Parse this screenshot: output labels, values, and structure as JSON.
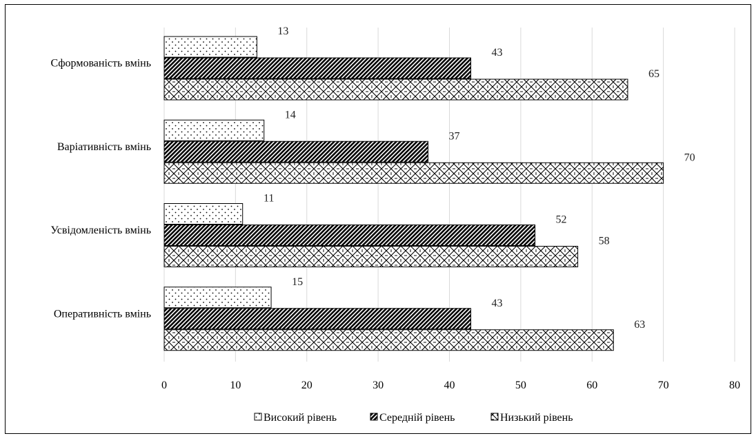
{
  "chart_data": {
    "type": "bar",
    "orientation": "horizontal",
    "categories": [
      "Сформованість вмінь",
      "Варіативність вмінь",
      "Усвідомленість вмінь",
      "Оперативність вмінь"
    ],
    "series": [
      {
        "name": "Високий рівень",
        "values": [
          13,
          14,
          11,
          15
        ],
        "pattern": "dots"
      },
      {
        "name": "Середній рівень",
        "values": [
          43,
          37,
          52,
          43
        ],
        "pattern": "diagonal-dense"
      },
      {
        "name": "Низький рівень",
        "values": [
          65,
          70,
          58,
          63
        ],
        "pattern": "diamond-lattice"
      }
    ],
    "x_ticks": [
      "0",
      "10",
      "20",
      "30",
      "40",
      "50",
      "60",
      "70",
      "80"
    ],
    "xlim": [
      0,
      80
    ],
    "grid": true,
    "legend_position": "bottom",
    "data_labels": true
  }
}
